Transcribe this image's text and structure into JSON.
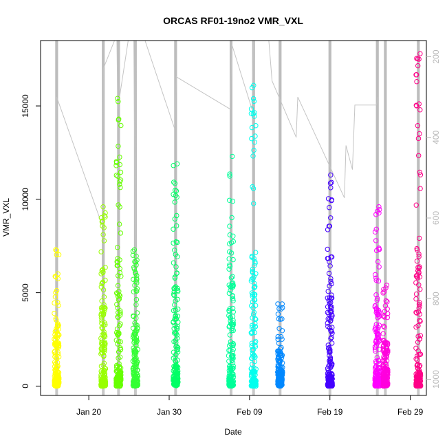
{
  "chart_data": {
    "type": "scatter",
    "title": "ORCAS RF01-19no2 VMR_VXL",
    "xlabel": "Date",
    "ylabel": "VMR_VXL",
    "xlim": [
      "2016-01-14",
      "2016-03-02"
    ],
    "ylim": [
      -500,
      18500
    ],
    "x_ticks": [
      {
        "date": "2016-01-20",
        "label": "Jan 20"
      },
      {
        "date": "2016-01-30",
        "label": "Jan 30"
      },
      {
        "date": "2016-02-09",
        "label": "Feb 09"
      },
      {
        "date": "2016-02-19",
        "label": "Feb 19"
      },
      {
        "date": "2016-02-29",
        "label": "Feb 29"
      }
    ],
    "y_ticks": [
      0,
      5000,
      10000,
      15000
    ],
    "right_axis": {
      "lim": [
        1040,
        160
      ],
      "ticks": [
        200,
        400,
        600,
        800,
        1000
      ],
      "color": "#b8b8b8"
    },
    "grid": false,
    "legend": "none",
    "series": [
      {
        "date": "2016-01-16",
        "color": "#ffff00",
        "max": 7300,
        "pressure_min": 680
      },
      {
        "date": "2016-01-21.8",
        "color": "#99ff00",
        "max": 9600,
        "pressure_min": 580
      },
      {
        "date": "2016-01-23.7",
        "color": "#66ff00",
        "max": 15400,
        "pressure_min": 310
      },
      {
        "date": "2016-01-25.8",
        "color": "#33ff33",
        "max": 7300,
        "pressure_min": 700
      },
      {
        "date": "2016-01-30.8",
        "color": "#00ff66",
        "max": 11900,
        "pressure_min": 350
      },
      {
        "date": "2016-02-06.7",
        "color": "#00ff99",
        "max": 12300,
        "pressure_min": 310
      },
      {
        "date": "2016-02-09.5",
        "color": "#00ffee",
        "max": 16100,
        "pressure_min": 290
      },
      {
        "date": "2016-02-12.8",
        "color": "#0088ff",
        "max": 4400,
        "pressure_min": 240
      },
      {
        "date": "2016-02-19.0",
        "color": "#4400ff",
        "max": 11300,
        "pressure_min": 300
      },
      {
        "date": "2016-02-24.9",
        "color": "#ff00ff",
        "max": 9600,
        "pressure_min": 540
      },
      {
        "date": "2016-02-25.9",
        "color": "#ff00dd",
        "max": 5400,
        "pressure_min": 420
      },
      {
        "date": "2016-03-01.0",
        "color": "#ff0088",
        "max": 17800,
        "pressure_min": 300
      }
    ],
    "pressure_track": [
      [
        15.9,
        1040
      ],
      [
        16.0,
        300
      ],
      [
        21.7,
        620
      ],
      [
        21.8,
        230
      ],
      [
        23.2,
        160
      ],
      [
        23.5,
        160
      ],
      [
        23.6,
        330
      ],
      [
        24.9,
        160
      ],
      [
        25.6,
        160
      ],
      [
        25.8,
        720
      ],
      [
        25.9,
        160
      ],
      [
        27.0,
        160
      ],
      [
        30.7,
        380
      ],
      [
        30.9,
        250
      ],
      [
        37.6,
        330
      ],
      [
        37.8,
        170
      ],
      [
        40.3,
        330
      ],
      [
        40.5,
        160
      ],
      [
        42.4,
        160
      ],
      [
        42.8,
        260
      ],
      [
        45.8,
        400
      ],
      [
        46.0,
        300
      ],
      [
        51.8,
        550
      ],
      [
        52.0,
        420
      ],
      [
        52.8,
        480
      ],
      [
        53.1,
        320
      ],
      [
        55.8,
        320
      ],
      [
        56.0,
        300
      ]
    ]
  }
}
